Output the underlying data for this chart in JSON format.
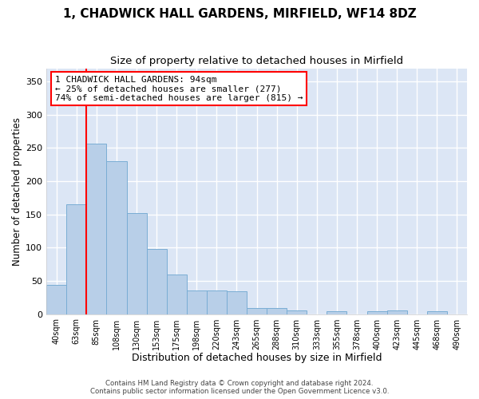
{
  "title": "1, CHADWICK HALL GARDENS, MIRFIELD, WF14 8DZ",
  "subtitle": "Size of property relative to detached houses in Mirfield",
  "xlabel": "Distribution of detached houses by size in Mirfield",
  "ylabel": "Number of detached properties",
  "footer_line1": "Contains HM Land Registry data © Crown copyright and database right 2024.",
  "footer_line2": "Contains public sector information licensed under the Open Government Licence v3.0.",
  "bar_labels": [
    "40sqm",
    "63sqm",
    "85sqm",
    "108sqm",
    "130sqm",
    "153sqm",
    "175sqm",
    "198sqm",
    "220sqm",
    "243sqm",
    "265sqm",
    "288sqm",
    "310sqm",
    "333sqm",
    "355sqm",
    "378sqm",
    "400sqm",
    "423sqm",
    "445sqm",
    "468sqm",
    "490sqm"
  ],
  "bar_values": [
    44,
    165,
    257,
    230,
    152,
    98,
    60,
    35,
    35,
    34,
    9,
    9,
    5,
    0,
    4,
    0,
    4,
    5,
    0,
    4,
    0
  ],
  "bar_color": "#b8cfe8",
  "bar_edge_color": "#7aadd4",
  "background_color": "#dce6f5",
  "grid_color": "#ffffff",
  "vline_color": "red",
  "annotation_text": "1 CHADWICK HALL GARDENS: 94sqm\n← 25% of detached houses are smaller (277)\n74% of semi-detached houses are larger (815) →",
  "annotation_box_color": "white",
  "annotation_box_edge_color": "red",
  "annotation_fontsize": 8,
  "ylim": [
    0,
    370
  ],
  "yticks": [
    0,
    50,
    100,
    150,
    200,
    250,
    300,
    350
  ],
  "title_fontsize": 11,
  "subtitle_fontsize": 9.5,
  "xlabel_fontsize": 9,
  "ylabel_fontsize": 8.5
}
